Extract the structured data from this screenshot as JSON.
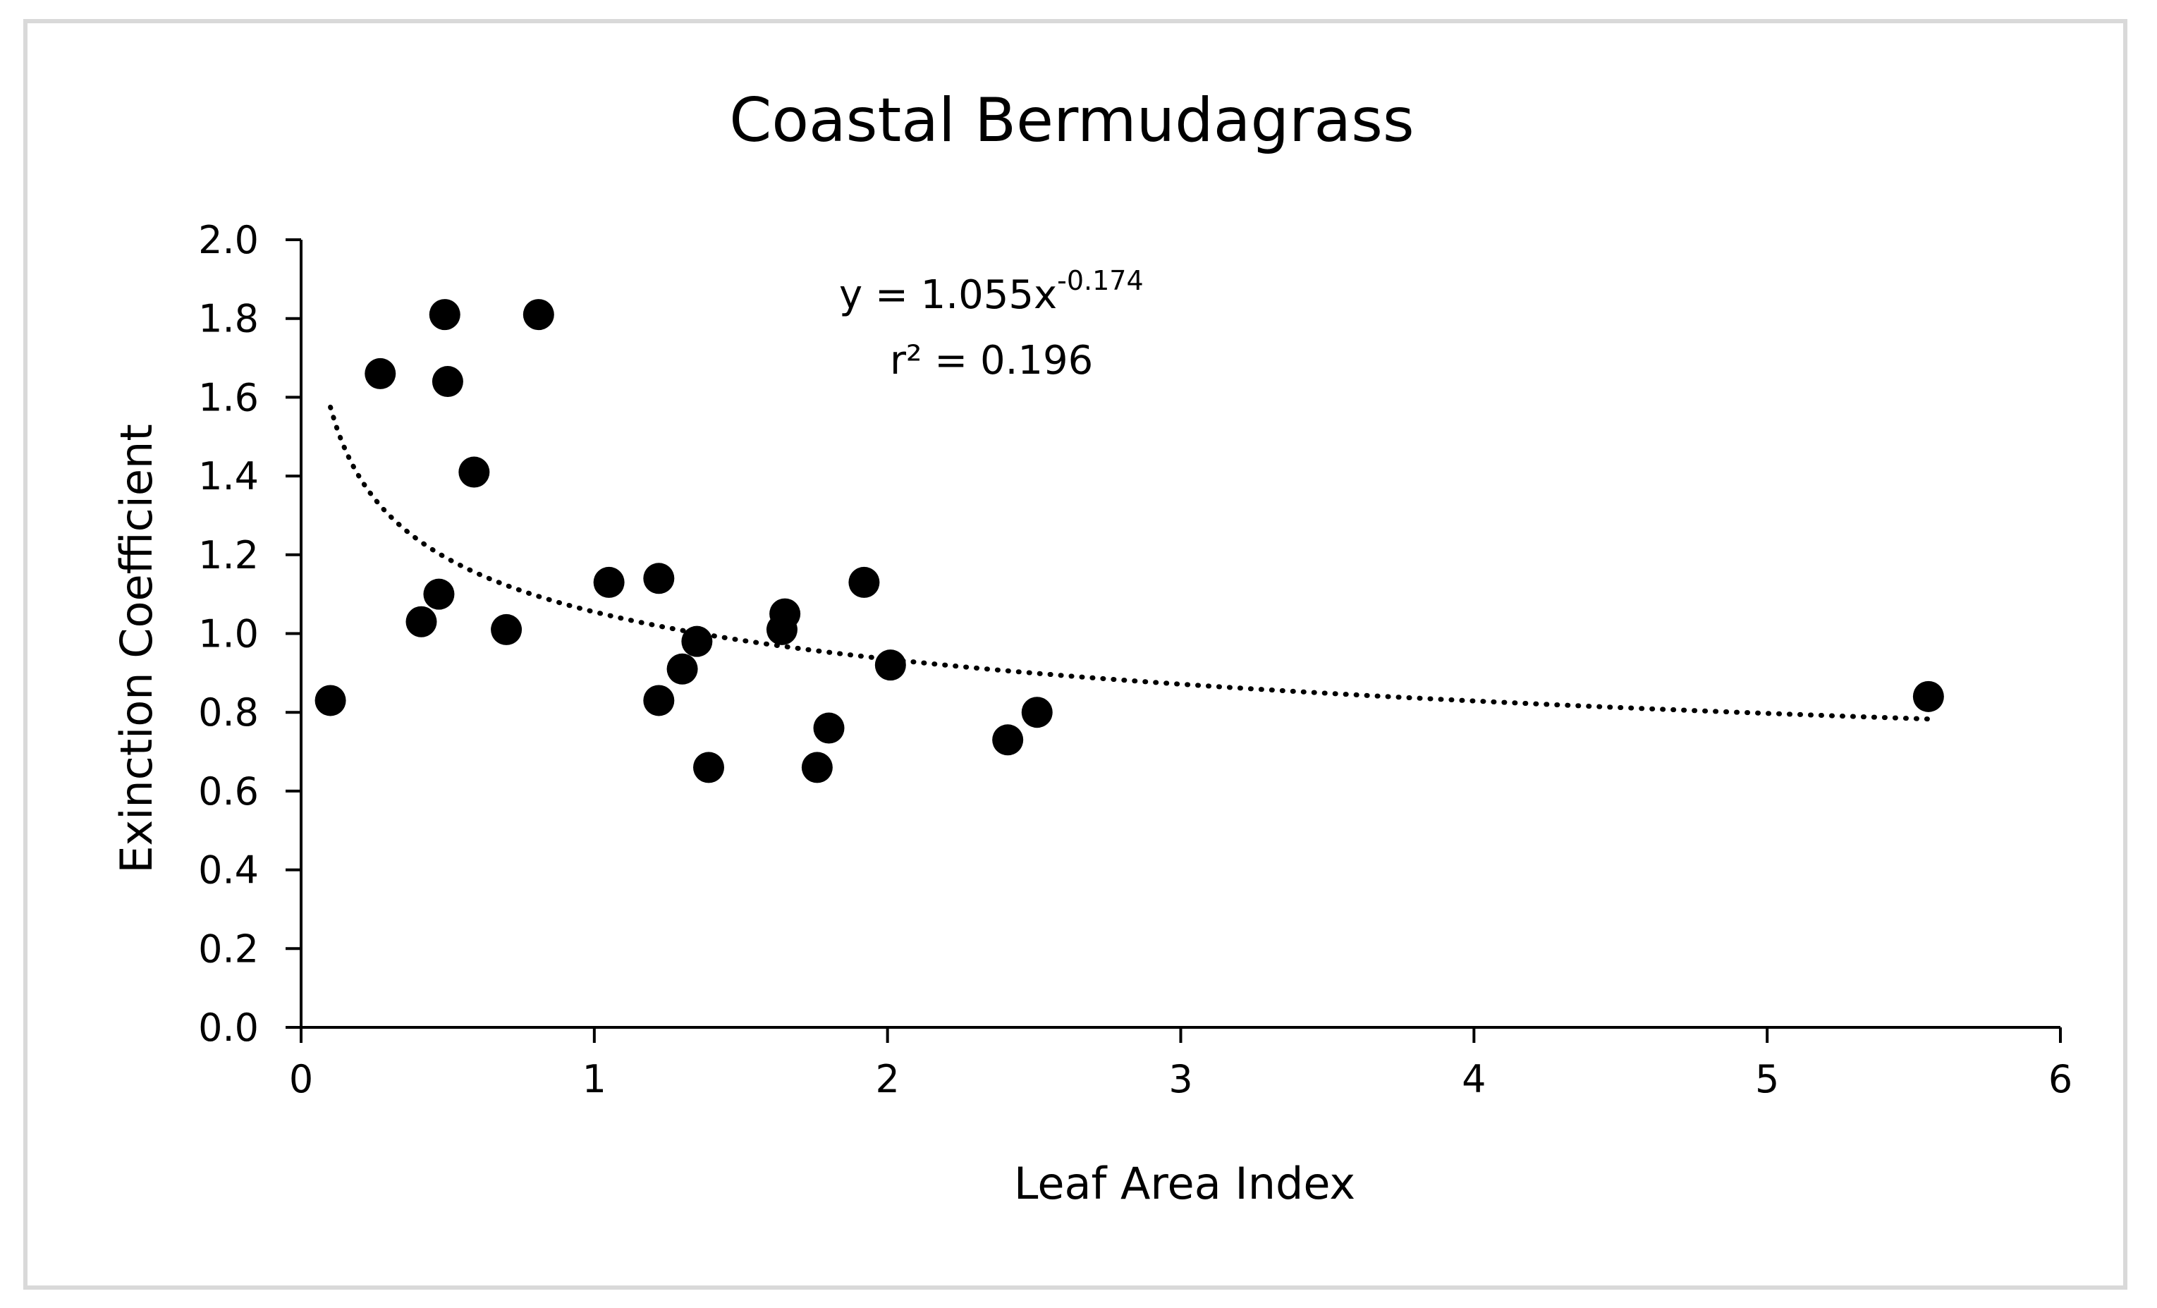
{
  "chart_data": {
    "type": "scatter",
    "title": "Coastal Bermudagrass",
    "xlabel": "Leaf Area Index",
    "ylabel": "Exinction Coefficient",
    "xlim": [
      0,
      6
    ],
    "ylim": [
      0,
      2.0
    ],
    "x_ticks": [
      "0",
      "1",
      "2",
      "3",
      "4",
      "5",
      "6"
    ],
    "y_ticks": [
      "0.0",
      "0.2",
      "0.4",
      "0.6",
      "0.8",
      "1.0",
      "1.2",
      "1.4",
      "1.6",
      "1.8",
      "2.0"
    ],
    "grid": false,
    "marker_color": "#000000",
    "points": [
      {
        "x": 0.1,
        "y": 0.83
      },
      {
        "x": 0.27,
        "y": 1.66
      },
      {
        "x": 0.41,
        "y": 1.03
      },
      {
        "x": 0.47,
        "y": 1.1
      },
      {
        "x": 0.49,
        "y": 1.81
      },
      {
        "x": 0.5,
        "y": 1.64
      },
      {
        "x": 0.59,
        "y": 1.41
      },
      {
        "x": 0.7,
        "y": 1.01
      },
      {
        "x": 0.81,
        "y": 1.81
      },
      {
        "x": 1.05,
        "y": 1.13
      },
      {
        "x": 1.22,
        "y": 1.14
      },
      {
        "x": 1.22,
        "y": 0.83
      },
      {
        "x": 1.3,
        "y": 0.91
      },
      {
        "x": 1.35,
        "y": 0.98
      },
      {
        "x": 1.39,
        "y": 0.66
      },
      {
        "x": 1.64,
        "y": 1.01
      },
      {
        "x": 1.65,
        "y": 1.05
      },
      {
        "x": 1.76,
        "y": 0.66
      },
      {
        "x": 1.8,
        "y": 0.76
      },
      {
        "x": 1.92,
        "y": 1.13
      },
      {
        "x": 2.01,
        "y": 0.92
      },
      {
        "x": 2.41,
        "y": 0.73
      },
      {
        "x": 2.51,
        "y": 0.8
      },
      {
        "x": 5.55,
        "y": 0.84
      }
    ],
    "trendline": {
      "type": "power",
      "a": 1.055,
      "b": -0.174,
      "x_range": [
        0.1,
        5.55
      ],
      "style": "dotted"
    },
    "annotation": {
      "equation_main": "y = 1.055x",
      "equation_exponent": "-0.174",
      "r_squared": "r² = 0.196"
    }
  }
}
